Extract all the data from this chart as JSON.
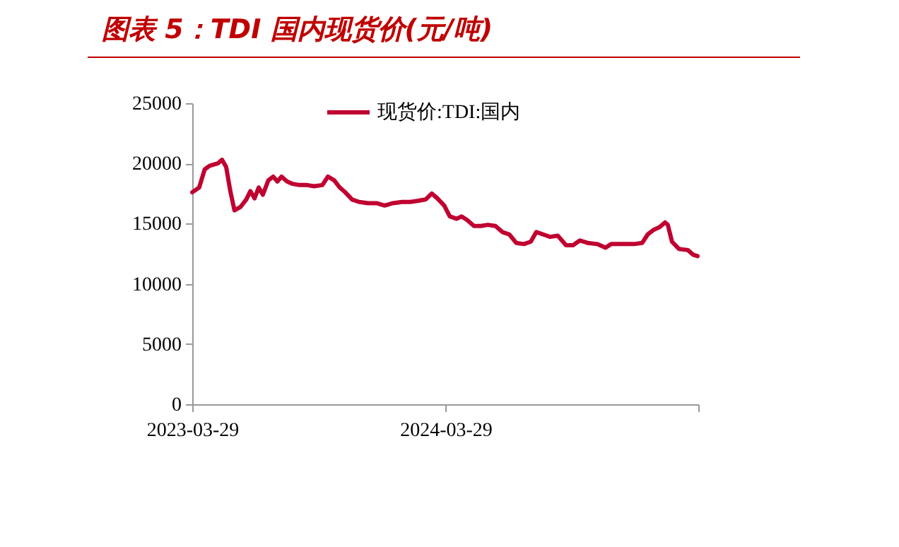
{
  "chart_data": {
    "type": "line",
    "title": "图表 5：TDI 国内现货价(元/吨)",
    "legend": "top",
    "x": [
      "2023-03-29",
      "2023-04-08",
      "2023-04-16",
      "2023-04-23",
      "2023-05-05",
      "2023-05-11",
      "2023-05-17",
      "2023-05-23",
      "2023-05-29",
      "2023-06-07",
      "2023-06-15",
      "2023-06-21",
      "2023-06-27",
      "2023-07-03",
      "2023-07-09",
      "2023-07-17",
      "2023-07-24",
      "2023-07-30",
      "2023-08-05",
      "2023-08-13",
      "2023-08-21",
      "2023-08-31",
      "2023-09-11",
      "2023-09-21",
      "2023-10-03",
      "2023-10-11",
      "2023-10-20",
      "2023-10-28",
      "2023-11-05",
      "2023-11-15",
      "2023-11-25",
      "2023-12-08",
      "2023-12-20",
      "2024-01-01",
      "2024-01-13",
      "2024-01-26",
      "2024-02-07",
      "2024-02-19",
      "2024-02-29",
      "2024-03-09",
      "2024-03-17",
      "2024-03-27",
      "2024-04-04",
      "2024-04-14",
      "2024-04-21",
      "2024-04-29",
      "2024-05-09",
      "2024-05-19",
      "2024-05-29",
      "2024-06-09",
      "2024-06-19",
      "2024-06-29",
      "2024-07-09",
      "2024-07-20",
      "2024-07-30",
      "2024-08-07",
      "2024-08-17",
      "2024-08-27",
      "2024-09-07",
      "2024-09-19",
      "2024-09-29",
      "2024-10-09",
      "2024-10-20",
      "2024-11-03",
      "2024-11-15",
      "2024-11-23",
      "2024-12-10",
      "2024-12-26",
      "2025-01-07",
      "2025-01-15",
      "2025-01-24",
      "2025-02-01",
      "2025-02-09",
      "2025-02-13",
      "2025-02-19",
      "2025-03-01",
      "2025-03-14",
      "2025-03-22",
      "2025-03-28"
    ],
    "series": [
      {
        "name": "现货价:TDI:国内",
        "color": "#c00030",
        "values": [
          17600,
          18000,
          19500,
          19800,
          20000,
          20300,
          19700,
          17700,
          16100,
          16400,
          17000,
          17700,
          17100,
          18000,
          17400,
          18600,
          18900,
          18500,
          18900,
          18500,
          18300,
          18200,
          18200,
          18100,
          18200,
          18900,
          18600,
          18000,
          17600,
          17000,
          16800,
          16700,
          16700,
          16500,
          16700,
          16800,
          16800,
          16900,
          17000,
          17500,
          17100,
          16500,
          15600,
          15400,
          15600,
          15300,
          14800,
          14800,
          14900,
          14800,
          14300,
          14100,
          13400,
          13300,
          13500,
          14300,
          14100,
          13900,
          14000,
          13200,
          13200,
          13600,
          13400,
          13300,
          13000,
          13300,
          13300,
          13300,
          13400,
          14100,
          14500,
          14700,
          15100,
          14900,
          13500,
          12900,
          12800,
          12400,
          12300
        ]
      }
    ],
    "xlim": [
      "2023-03-29",
      "2025-03-29"
    ],
    "xticks": [
      {
        "value": "2023-03-29",
        "label": "2023-03-29"
      },
      {
        "value": "2024-03-29",
        "label": "2024-03-29"
      },
      {
        "value": "2025-03-29",
        "label": null
      }
    ],
    "ylim": [
      0,
      25000
    ],
    "yticks": [
      0,
      5000,
      10000,
      15000,
      20000,
      25000
    ]
  }
}
